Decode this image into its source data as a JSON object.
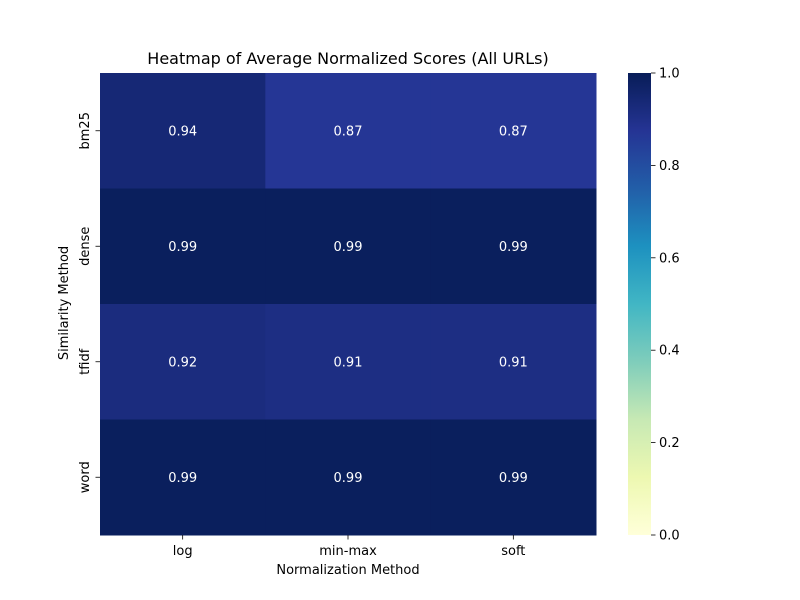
{
  "chart_data": {
    "type": "heatmap",
    "title": "Heatmap of Average Normalized Scores (All URLs)",
    "xlabel": "Normalization Method",
    "ylabel": "Similarity Method",
    "x_categories": [
      "log",
      "min-max",
      "soft"
    ],
    "y_categories": [
      "bm25",
      "dense",
      "tfidf",
      "word"
    ],
    "values": [
      [
        0.94,
        0.87,
        0.87
      ],
      [
        0.99,
        0.99,
        0.99
      ],
      [
        0.92,
        0.91,
        0.91
      ],
      [
        0.99,
        0.99,
        0.99
      ]
    ],
    "value_labels": [
      [
        "0.94",
        "0.87",
        "0.87"
      ],
      [
        "0.99",
        "0.99",
        "0.99"
      ],
      [
        "0.92",
        "0.91",
        "0.91"
      ],
      [
        "0.99",
        "0.99",
        "0.99"
      ]
    ],
    "colorscale": "YlGnBu",
    "colorbar": {
      "range": [
        0.0,
        1.0
      ],
      "ticks": [
        0.0,
        0.2,
        0.4,
        0.6,
        0.8,
        1.0
      ],
      "tick_labels": [
        "0.0",
        "0.2",
        "0.4",
        "0.6",
        "0.8",
        "1.0"
      ]
    },
    "annotation_color": "#ffffff"
  }
}
